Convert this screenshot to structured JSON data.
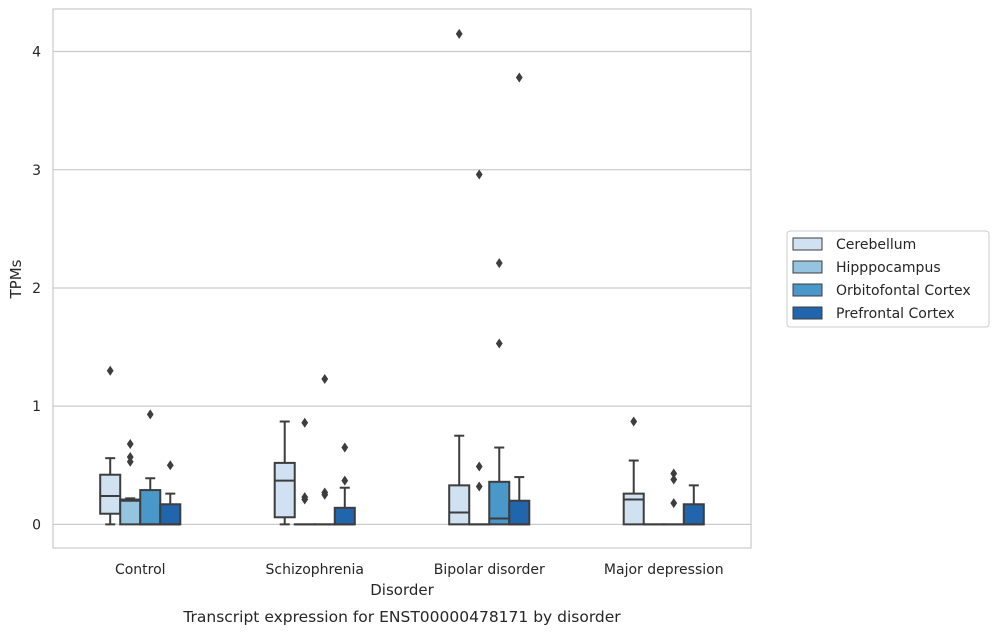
{
  "chart_data": {
    "type": "box",
    "title": "",
    "caption": "Transcript expression for ENST00000478171 by disorder",
    "xlabel": "Disorder",
    "ylabel": "TPMs",
    "ylim": [
      -0.2,
      4.36
    ],
    "yticks": [
      0,
      1,
      2,
      3,
      4
    ],
    "grid": "horizontal",
    "legend_position": "right",
    "categories": [
      "Control",
      "Schizophrenia",
      "Bipolar disorder",
      "Major depression"
    ],
    "series": [
      {
        "name": "Cerebellum",
        "color": "#d0e1f2",
        "boxes": [
          {
            "whisker_low": 0.0,
            "q1": 0.09,
            "median": 0.24,
            "q3": 0.42,
            "whisker_high": 0.56,
            "outliers": [
              1.3
            ]
          },
          {
            "whisker_low": 0.0,
            "q1": 0.06,
            "median": 0.37,
            "q3": 0.52,
            "whisker_high": 0.87,
            "outliers": []
          },
          {
            "whisker_low": 0.0,
            "q1": 0.0,
            "median": 0.1,
            "q3": 0.33,
            "whisker_high": 0.75,
            "outliers": [
              4.15
            ]
          },
          {
            "whisker_low": 0.0,
            "q1": 0.0,
            "median": 0.21,
            "q3": 0.26,
            "whisker_high": 0.54,
            "outliers": [
              0.87
            ]
          }
        ]
      },
      {
        "name": "Hipppocampus",
        "color": "#94c4df",
        "boxes": [
          {
            "whisker_low": 0.0,
            "q1": 0.0,
            "median": 0.2,
            "q3": 0.21,
            "whisker_high": 0.22,
            "outliers": [
              0.53,
              0.57,
              0.68
            ]
          },
          {
            "whisker_low": 0.0,
            "q1": 0.0,
            "median": 0.0,
            "q3": 0.0,
            "whisker_high": 0.0,
            "outliers": [
              0.21,
              0.23,
              0.86
            ]
          },
          {
            "whisker_low": 0.0,
            "q1": 0.0,
            "median": 0.0,
            "q3": 0.0,
            "whisker_high": 0.0,
            "outliers": [
              0.32,
              0.49,
              2.96
            ]
          },
          {
            "whisker_low": 0.0,
            "q1": 0.0,
            "median": 0.0,
            "q3": 0.0,
            "whisker_high": 0.0,
            "outliers": []
          }
        ]
      },
      {
        "name": "Orbitofontal Cortex",
        "color": "#4a98c9",
        "boxes": [
          {
            "whisker_low": 0.0,
            "q1": 0.0,
            "median": 0.0,
            "q3": 0.29,
            "whisker_high": 0.39,
            "outliers": [
              0.93
            ]
          },
          {
            "whisker_low": 0.0,
            "q1": 0.0,
            "median": 0.0,
            "q3": 0.0,
            "whisker_high": 0.0,
            "outliers": [
              0.25,
              0.27,
              1.23
            ]
          },
          {
            "whisker_low": 0.0,
            "q1": 0.0,
            "median": 0.05,
            "q3": 0.36,
            "whisker_high": 0.65,
            "outliers": [
              1.53,
              2.21
            ]
          },
          {
            "whisker_low": 0.0,
            "q1": 0.0,
            "median": 0.0,
            "q3": 0.0,
            "whisker_high": 0.0,
            "outliers": [
              0.18,
              0.38,
              0.43
            ]
          }
        ]
      },
      {
        "name": "Prefrontal Cortex",
        "color": "#2166ac",
        "boxes": [
          {
            "whisker_low": 0.0,
            "q1": 0.0,
            "median": 0.0,
            "q3": 0.17,
            "whisker_high": 0.26,
            "outliers": [
              0.5
            ]
          },
          {
            "whisker_low": 0.0,
            "q1": 0.0,
            "median": 0.0,
            "q3": 0.14,
            "whisker_high": 0.31,
            "outliers": [
              0.37,
              0.65
            ]
          },
          {
            "whisker_low": 0.0,
            "q1": 0.0,
            "median": 0.0,
            "q3": 0.2,
            "whisker_high": 0.4,
            "outliers": [
              3.78
            ]
          },
          {
            "whisker_low": 0.0,
            "q1": 0.0,
            "median": 0.0,
            "q3": 0.17,
            "whisker_high": 0.33,
            "outliers": []
          }
        ]
      }
    ]
  }
}
